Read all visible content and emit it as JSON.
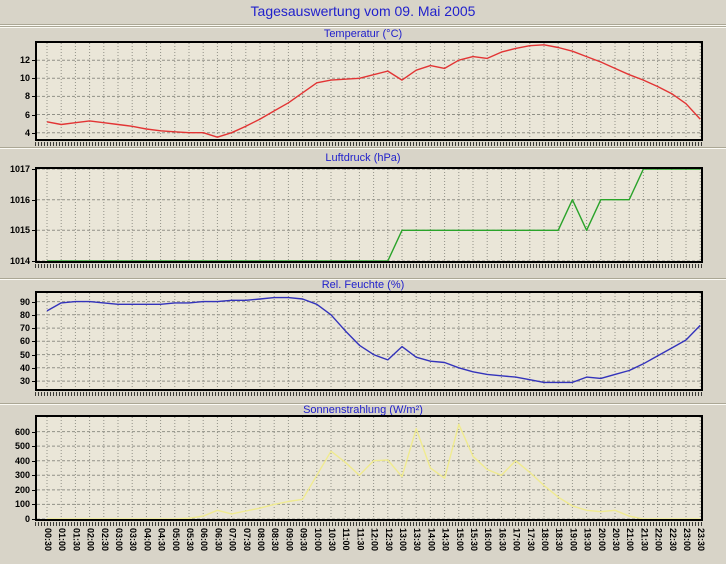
{
  "page": {
    "title": "Tagesauswertung vom 09. Mai 2005"
  },
  "colors": {
    "page_bg": "#d8d4c8",
    "plot_bg": "#eae6d8",
    "title_blue": "#2121cc",
    "grid": "#919187",
    "axis": "#000000",
    "temperature_line": "#e23434",
    "pressure_line": "#2aa32a",
    "humidity_line": "#3333bb",
    "radiation_line": "#f0eb8f"
  },
  "time_labels": [
    "00:30",
    "01:00",
    "01:30",
    "02:00",
    "02:30",
    "03:00",
    "03:30",
    "04:00",
    "04:30",
    "05:00",
    "05:30",
    "06:00",
    "06:30",
    "07:00",
    "07:30",
    "08:00",
    "08:30",
    "09:00",
    "09:30",
    "10:00",
    "10:30",
    "11:00",
    "11:30",
    "12:00",
    "12:30",
    "13:00",
    "13:30",
    "14:00",
    "14:30",
    "15:00",
    "15:30",
    "16:00",
    "16:30",
    "17:00",
    "17:30",
    "18:00",
    "18:30",
    "19:00",
    "19:30",
    "20:00",
    "20:30",
    "21:00",
    "21:30",
    "22:00",
    "22:30",
    "23:00",
    "23:30"
  ],
  "chart_data": [
    {
      "type": "line",
      "title": "Temperatur (°C)",
      "color": "#e23434",
      "y_ticks": [
        4,
        6,
        8,
        10,
        12
      ],
      "y_range": [
        3.3,
        13.9
      ],
      "grid": true,
      "values": [
        5.2,
        4.9,
        5.1,
        5.3,
        5.1,
        4.9,
        4.7,
        4.4,
        4.2,
        4.1,
        4.0,
        4.0,
        3.5,
        4.0,
        4.7,
        5.5,
        6.4,
        7.3,
        8.4,
        9.5,
        9.8,
        9.9,
        10.0,
        10.4,
        10.8,
        9.8,
        10.9,
        11.4,
        11.1,
        12.0,
        12.4,
        12.2,
        12.9,
        13.3,
        13.6,
        13.7,
        13.4,
        13.0,
        12.4,
        11.8,
        11.1,
        10.4,
        9.8,
        9.1,
        8.3,
        7.2,
        5.5
      ]
    },
    {
      "type": "line",
      "title": "Luftdruck (hPa)",
      "color": "#2aa32a",
      "y_ticks": [
        1014,
        1015,
        1016,
        1017
      ],
      "y_range": [
        1014,
        1017
      ],
      "grid": true,
      "values": [
        1014,
        1014,
        1014,
        1014,
        1014,
        1014,
        1014,
        1014,
        1014,
        1014,
        1014,
        1014,
        1014,
        1014,
        1014,
        1014,
        1014,
        1014,
        1014,
        1014,
        1014,
        1014,
        1014,
        1014,
        1014,
        1015,
        1015,
        1015,
        1015,
        1015,
        1015,
        1015,
        1015,
        1015,
        1015,
        1015,
        1015,
        1016,
        1015,
        1016,
        1016,
        1016,
        1017,
        1017,
        1017,
        1017,
        1017
      ]
    },
    {
      "type": "line",
      "title": "Rel. Feuchte (%)",
      "color": "#3333bb",
      "y_ticks": [
        30,
        40,
        50,
        60,
        70,
        80,
        90
      ],
      "y_range": [
        24,
        96.5
      ],
      "grid": true,
      "values": [
        83,
        89,
        90,
        90,
        89,
        88,
        88,
        88,
        88,
        89,
        89,
        90,
        90,
        91,
        91,
        92,
        93,
        93,
        92,
        88,
        80,
        68,
        57,
        50,
        46,
        56,
        48,
        45,
        44,
        40,
        37,
        35,
        34,
        33,
        31,
        29,
        29,
        29,
        33,
        32,
        35,
        38,
        43,
        49,
        55,
        61,
        72
      ]
    },
    {
      "type": "line",
      "title": "Sonnenstrahlung (W/m²)",
      "color": "#f0eb8f",
      "y_ticks": [
        0,
        100,
        200,
        300,
        400,
        500,
        600
      ],
      "y_range": [
        0,
        700
      ],
      "grid": true,
      "values": [
        0,
        0,
        0,
        0,
        0,
        0,
        0,
        0,
        0,
        0,
        5,
        20,
        60,
        35,
        55,
        75,
        100,
        120,
        135,
        300,
        465,
        390,
        300,
        400,
        405,
        290,
        620,
        350,
        280,
        650,
        430,
        340,
        300,
        400,
        320,
        230,
        150,
        90,
        60,
        50,
        60,
        20,
        0,
        0,
        0,
        0,
        0
      ]
    }
  ]
}
